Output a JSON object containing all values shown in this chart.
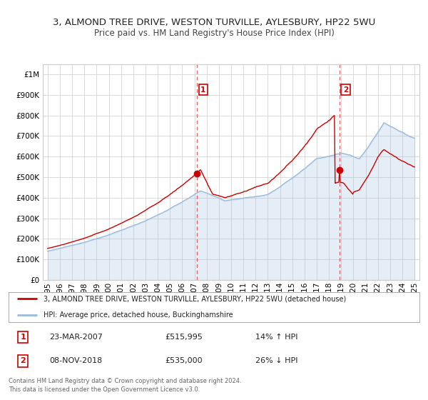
{
  "title": "3, ALMOND TREE DRIVE, WESTON TURVILLE, AYLESBURY, HP22 5WU",
  "subtitle": "Price paid vs. HM Land Registry's House Price Index (HPI)",
  "red_label": "3, ALMOND TREE DRIVE, WESTON TURVILLE, AYLESBURY, HP22 5WU (detached house)",
  "blue_label": "HPI: Average price, detached house, Buckinghamshire",
  "annotation1_date": "23-MAR-2007",
  "annotation1_price": "£515,995",
  "annotation1_hpi": "14% ↑ HPI",
  "annotation2_date": "08-NOV-2018",
  "annotation2_price": "£535,000",
  "annotation2_hpi": "26% ↓ HPI",
  "footnote1": "Contains HM Land Registry data © Crown copyright and database right 2024.",
  "footnote2": "This data is licensed under the Open Government Licence v3.0.",
  "red_color": "#cc0000",
  "blue_color": "#99bbdd",
  "blue_fill_color": "#ddeeff",
  "vline_color": "#dd4444",
  "sale1_year": 2007.22,
  "sale1_price": 515995,
  "sale2_year": 2018.85,
  "sale2_price": 535000,
  "ylim_min": 0,
  "ylim_max": 1050000,
  "xlim_min": 1994.6,
  "xlim_max": 2025.4,
  "background_color": "#ffffff",
  "grid_color": "#cccccc",
  "title_fontsize": 9.5,
  "subtitle_fontsize": 8.5,
  "tick_fontsize": 7.5,
  "annot_fontsize": 8
}
